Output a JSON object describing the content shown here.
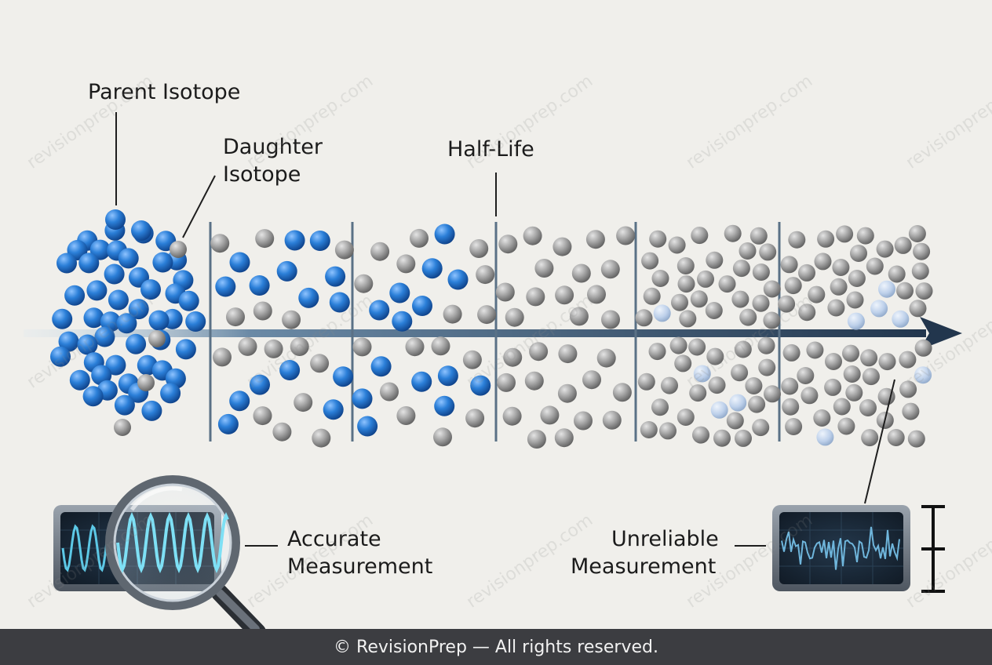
{
  "labels": {
    "parent": "Parent Isotope",
    "daughter_line1": "Daughter",
    "daughter_line2": "Isotope",
    "half_life": "Half-Life",
    "accurate_line1": "Accurate",
    "accurate_line2": "Measurement",
    "unreliable_line1": "Unreliable",
    "unreliable_line2": "Measurement"
  },
  "watermark": "revisionprep.com",
  "footer": "© RevisionPrep — All rights reserved.",
  "colors": {
    "background": "#f0efeb",
    "parent_atom": "#1f6fc9",
    "daughter_atom": "#9a9a9a",
    "faded_atom": "#b8cde8",
    "arrow": "#2c3e55",
    "divider": "#5a7186",
    "screen": "#1d2a38",
    "wave_accurate": "#5cc8e6",
    "wave_noisy": "#6fb6dc",
    "footer_bg": "#3c3d41"
  },
  "icons": {
    "magnifier": "magnifying-glass-icon",
    "accurate_monitor": "oscilloscope-clean-wave",
    "unreliable_monitor": "oscilloscope-noisy-wave",
    "error_bar": "error-bar-icon"
  },
  "stages": [
    {
      "name": "initial",
      "parent_fraction": 0.96
    },
    {
      "name": "after-1-half-life",
      "parent_fraction": 0.6
    },
    {
      "name": "after-2-half-lives",
      "parent_fraction": 0.4
    },
    {
      "name": "after-3-half-lives",
      "parent_fraction": 0.0
    },
    {
      "name": "after-4-half-lives",
      "parent_fraction": 0.05
    },
    {
      "name": "after-5-half-lives",
      "parent_fraction": 0.05
    }
  ]
}
